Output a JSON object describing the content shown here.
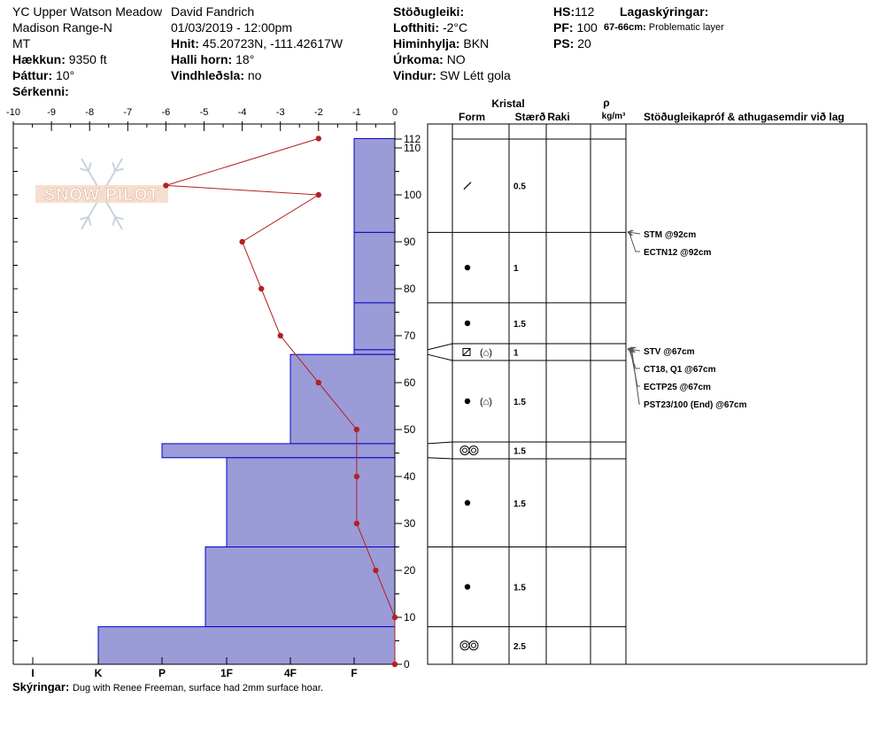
{
  "header": {
    "location": "YC Upper Watson Meadow",
    "range": "Madison Range-N",
    "state": "MT",
    "elevation": {
      "label": "Hækkun:",
      "value": "9350 ft"
    },
    "aspect": {
      "label": "Þáttur:",
      "value": "10°"
    },
    "features": {
      "label": "Sérkenni:",
      "value": ""
    },
    "observer": "David Fandrich",
    "datetime": "01/03/2019 - 12:00pm",
    "coords": {
      "label": "Hnit:",
      "value": "45.20723N, -111.42617W"
    },
    "slope": {
      "label": "Halli horn:",
      "value": "18°"
    },
    "wind_loading": {
      "label": "Vindhleðsla:",
      "value": "no"
    },
    "stability": {
      "label": "Stöðugleiki:",
      "value": ""
    },
    "air_temp": {
      "label": "Lofthiti:",
      "value": "-2°C"
    },
    "sky": {
      "label": "Himinhylja:",
      "value": "BKN"
    },
    "precip": {
      "label": "Úrkoma:",
      "value": "NO"
    },
    "wind": {
      "label": "Vindur:",
      "value": "SW Létt gola"
    },
    "hs": {
      "label": "HS:",
      "value": "112"
    },
    "pf": {
      "label": "PF:",
      "value": "100"
    },
    "ps": {
      "label": "PS:",
      "value": "20"
    },
    "legend_title": "Lagaskýringar:",
    "legend_layer": {
      "range": "67-66cm:",
      "text": "Problematic layer"
    }
  },
  "watermark": "SNOW PILOT",
  "columns": {
    "crystal": "Kristal",
    "form": "Form",
    "size": "Stærð",
    "moisture": "Raki",
    "density_symbol": "ρ",
    "density_unit": "kg/m³",
    "tests": "Stöðugleikapróf & athugasemdir við lag"
  },
  "caption": {
    "label": "Skýringar:",
    "text": "Dug with Renee Freeman, surface had 2mm surface hoar."
  },
  "colors": {
    "hardness_fill": "#9b9bd8",
    "hardness_stroke": "#0000cc",
    "temp": "#b22222"
  },
  "chart_data": {
    "type": "snow_profile",
    "temp_axis": {
      "ticks": [
        "-10",
        "-9",
        "-8",
        "-7",
        "-6",
        "-5",
        "-4",
        "-3",
        "-2",
        "-1",
        "0"
      ],
      "range": [
        -10,
        0
      ]
    },
    "hardness_axis": {
      "ticks": [
        "I",
        "K",
        "P",
        "1F",
        "4F",
        "F"
      ]
    },
    "height_axis": {
      "ticks": [
        "0",
        "10",
        "20",
        "30",
        "40",
        "50",
        "60",
        "70",
        "80",
        "90",
        "100",
        "110"
      ],
      "top_label": "112",
      "range": [
        0,
        112
      ]
    },
    "layers": [
      {
        "top": 112,
        "bottom": 92,
        "hardness": "F",
        "form": "slash",
        "size": "0.5"
      },
      {
        "top": 92,
        "bottom": 77,
        "hardness": "F",
        "form": "dot",
        "size": "1"
      },
      {
        "top": 77,
        "bottom": 67,
        "hardness": "F",
        "form": "dot",
        "size": "1.5"
      },
      {
        "top": 67,
        "bottom": 66,
        "hardness": "F",
        "form": "square-cup",
        "size": "1"
      },
      {
        "top": 66,
        "bottom": 47,
        "hardness": "4F+",
        "form": "dot-cup",
        "size": "1.5"
      },
      {
        "top": 47,
        "bottom": 44,
        "hardness": "P-",
        "form": "ovals",
        "size": "1.5"
      },
      {
        "top": 44,
        "bottom": 25,
        "hardness": "1F",
        "form": "dot",
        "size": "1.5"
      },
      {
        "top": 25,
        "bottom": 8,
        "hardness": "1F+",
        "form": "dot",
        "size": "1.5"
      },
      {
        "top": 8,
        "bottom": 0,
        "hardness": "K",
        "form": "ovals",
        "size": "2.5"
      }
    ],
    "temperature_profile": [
      {
        "height": 112,
        "temp": -2
      },
      {
        "height": 102,
        "temp": -6
      },
      {
        "height": 100,
        "temp": -2
      },
      {
        "height": 90,
        "temp": -4
      },
      {
        "height": 80,
        "temp": -3.5
      },
      {
        "height": 70,
        "temp": -3
      },
      {
        "height": 60,
        "temp": -2
      },
      {
        "height": 50,
        "temp": -1
      },
      {
        "height": 40,
        "temp": -1
      },
      {
        "height": 30,
        "temp": -1
      },
      {
        "height": 20,
        "temp": -0.5
      },
      {
        "height": 10,
        "temp": 0
      },
      {
        "height": 0,
        "temp": 0
      }
    ],
    "tests": [
      {
        "height": 92,
        "text": "STM @92cm"
      },
      {
        "height": 92,
        "text": "ECTN12 @92cm"
      },
      {
        "height": 67,
        "text": "STV @67cm"
      },
      {
        "height": 67,
        "text": "CT18, Q1 @67cm"
      },
      {
        "height": 67,
        "text": "ECTP25 @67cm"
      },
      {
        "height": 67,
        "text": "PST23/100 (End) @67cm"
      }
    ]
  }
}
